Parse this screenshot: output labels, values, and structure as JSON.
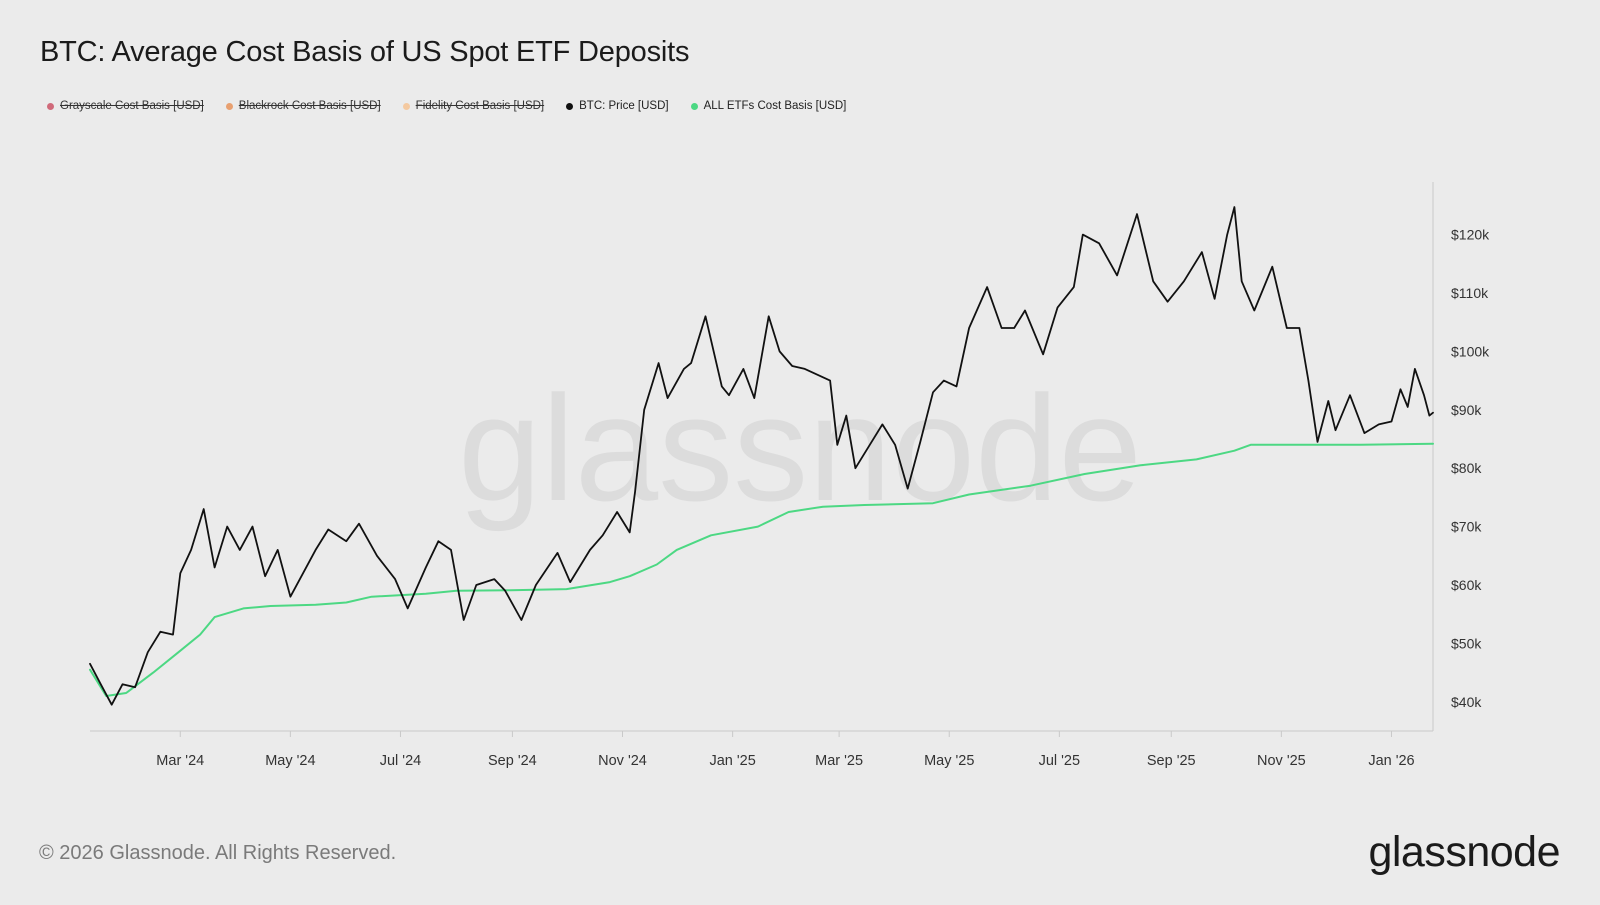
{
  "title": "BTC: Average Cost Basis of US Spot ETF Deposits",
  "legend": [
    {
      "label": "Grayscale Cost Basis [USD]",
      "color": "#d06a7a",
      "disabled": true
    },
    {
      "label": "Blackrock Cost Basis [USD]",
      "color": "#e8a070",
      "disabled": true
    },
    {
      "label": "Fidelity Cost Basis [USD]",
      "color": "#f4c9a0",
      "disabled": true
    },
    {
      "label": "BTC: Price [USD]",
      "color": "#111111",
      "disabled": false
    },
    {
      "label": "ALL ETFs Cost Basis [USD]",
      "color": "#4cd883",
      "disabled": false
    }
  ],
  "watermark": "glassnode",
  "footer": "© 2026 Glassnode. All Rights Reserved.",
  "brand": "glassnode",
  "chart_data": {
    "type": "line",
    "y_ticks": [
      40000,
      50000,
      60000,
      70000,
      80000,
      90000,
      100000,
      110000,
      120000
    ],
    "y_tick_labels": [
      "$40k",
      "$50k",
      "$60k",
      "$70k",
      "$80k",
      "$90k",
      "$100k",
      "$110k",
      "$120k"
    ],
    "ylim": [
      35000,
      129000
    ],
    "y_axis_position": "right",
    "x_ticks": [
      "2024-03-01",
      "2024-05-01",
      "2024-07-01",
      "2024-09-01",
      "2024-11-01",
      "2025-01-01",
      "2025-03-01",
      "2025-05-01",
      "2025-07-01",
      "2025-09-01",
      "2025-11-01",
      "2026-01-01"
    ],
    "x_tick_labels": [
      "Mar '24",
      "May '24",
      "Jul '24",
      "Sep '24",
      "Nov '24",
      "Jan '25",
      "Mar '25",
      "May '25",
      "Jul '25",
      "Sep '25",
      "Nov '25",
      "Jan '26"
    ],
    "xlim": [
      "2024-01-11",
      "2026-01-24"
    ],
    "grid": false,
    "series": [
      {
        "name": "BTC: Price [USD]",
        "color": "#111111",
        "points": [
          [
            "2024-01-11",
            46500
          ],
          [
            "2024-01-17",
            43000
          ],
          [
            "2024-01-23",
            39500
          ],
          [
            "2024-01-29",
            43000
          ],
          [
            "2024-02-05",
            42500
          ],
          [
            "2024-02-12",
            48500
          ],
          [
            "2024-02-19",
            52000
          ],
          [
            "2024-02-26",
            51500
          ],
          [
            "2024-03-01",
            62000
          ],
          [
            "2024-03-07",
            66000
          ],
          [
            "2024-03-14",
            73000
          ],
          [
            "2024-03-20",
            63000
          ],
          [
            "2024-03-27",
            70000
          ],
          [
            "2024-04-03",
            66000
          ],
          [
            "2024-04-10",
            70000
          ],
          [
            "2024-04-17",
            61500
          ],
          [
            "2024-04-24",
            66000
          ],
          [
            "2024-05-01",
            58000
          ],
          [
            "2024-05-08",
            62000
          ],
          [
            "2024-05-15",
            66000
          ],
          [
            "2024-05-22",
            69500
          ],
          [
            "2024-06-01",
            67500
          ],
          [
            "2024-06-08",
            70500
          ],
          [
            "2024-06-18",
            65000
          ],
          [
            "2024-06-28",
            61000
          ],
          [
            "2024-07-05",
            56000
          ],
          [
            "2024-07-15",
            63000
          ],
          [
            "2024-07-22",
            67500
          ],
          [
            "2024-07-29",
            66000
          ],
          [
            "2024-08-05",
            54000
          ],
          [
            "2024-08-12",
            60000
          ],
          [
            "2024-08-22",
            61000
          ],
          [
            "2024-08-28",
            59000
          ],
          [
            "2024-09-06",
            54000
          ],
          [
            "2024-09-14",
            60000
          ],
          [
            "2024-09-26",
            65500
          ],
          [
            "2024-10-03",
            60500
          ],
          [
            "2024-10-14",
            66000
          ],
          [
            "2024-10-21",
            68500
          ],
          [
            "2024-10-29",
            72500
          ],
          [
            "2024-11-05",
            69000
          ],
          [
            "2024-11-08",
            76000
          ],
          [
            "2024-11-13",
            90000
          ],
          [
            "2024-11-21",
            98000
          ],
          [
            "2024-11-26",
            92000
          ],
          [
            "2024-12-05",
            97000
          ],
          [
            "2024-12-09",
            98000
          ],
          [
            "2024-12-17",
            106000
          ],
          [
            "2024-12-26",
            94000
          ],
          [
            "2024-12-30",
            92500
          ],
          [
            "2025-01-07",
            97000
          ],
          [
            "2025-01-13",
            92000
          ],
          [
            "2025-01-21",
            106000
          ],
          [
            "2025-01-27",
            100000
          ],
          [
            "2025-02-03",
            97500
          ],
          [
            "2025-02-10",
            97000
          ],
          [
            "2025-02-24",
            95000
          ],
          [
            "2025-02-28",
            84000
          ],
          [
            "2025-03-05",
            89000
          ],
          [
            "2025-03-10",
            80000
          ],
          [
            "2025-03-18",
            84000
          ],
          [
            "2025-03-25",
            87500
          ],
          [
            "2025-04-01",
            84000
          ],
          [
            "2025-04-08",
            76500
          ],
          [
            "2025-04-15",
            84500
          ],
          [
            "2025-04-22",
            93000
          ],
          [
            "2025-04-28",
            95000
          ],
          [
            "2025-05-05",
            94000
          ],
          [
            "2025-05-12",
            104000
          ],
          [
            "2025-05-22",
            111000
          ],
          [
            "2025-05-30",
            104000
          ],
          [
            "2025-06-06",
            104000
          ],
          [
            "2025-06-12",
            107000
          ],
          [
            "2025-06-22",
            99500
          ],
          [
            "2025-06-30",
            107500
          ],
          [
            "2025-07-09",
            111000
          ],
          [
            "2025-07-14",
            120000
          ],
          [
            "2025-07-23",
            118500
          ],
          [
            "2025-08-02",
            113000
          ],
          [
            "2025-08-13",
            123500
          ],
          [
            "2025-08-22",
            112000
          ],
          [
            "2025-08-30",
            108500
          ],
          [
            "2025-09-08",
            112000
          ],
          [
            "2025-09-18",
            117000
          ],
          [
            "2025-09-25",
            109000
          ],
          [
            "2025-10-02",
            120000
          ],
          [
            "2025-10-06",
            124700
          ],
          [
            "2025-10-10",
            112000
          ],
          [
            "2025-10-17",
            107000
          ],
          [
            "2025-10-27",
            114500
          ],
          [
            "2025-11-04",
            104000
          ],
          [
            "2025-11-11",
            104000
          ],
          [
            "2025-11-16",
            95000
          ],
          [
            "2025-11-21",
            84500
          ],
          [
            "2025-11-27",
            91500
          ],
          [
            "2025-12-01",
            86500
          ],
          [
            "2025-12-09",
            92500
          ],
          [
            "2025-12-17",
            86000
          ],
          [
            "2025-12-25",
            87500
          ],
          [
            "2026-01-01",
            88000
          ],
          [
            "2026-01-06",
            93500
          ],
          [
            "2026-01-10",
            90500
          ],
          [
            "2026-01-14",
            97000
          ],
          [
            "2026-01-19",
            92500
          ],
          [
            "2026-01-22",
            89000
          ],
          [
            "2026-01-24",
            89500
          ]
        ]
      },
      {
        "name": "ALL ETFs Cost Basis [USD]",
        "color": "#4cd883",
        "points": [
          [
            "2024-01-11",
            45500
          ],
          [
            "2024-01-20",
            41000
          ],
          [
            "2024-01-31",
            41500
          ],
          [
            "2024-02-15",
            45000
          ],
          [
            "2024-02-29",
            48500
          ],
          [
            "2024-03-12",
            51500
          ],
          [
            "2024-03-20",
            54500
          ],
          [
            "2024-04-05",
            56000
          ],
          [
            "2024-04-20",
            56400
          ],
          [
            "2024-05-15",
            56600
          ],
          [
            "2024-06-01",
            57000
          ],
          [
            "2024-06-15",
            58000
          ],
          [
            "2024-07-15",
            58500
          ],
          [
            "2024-08-01",
            59000
          ],
          [
            "2024-08-31",
            59100
          ],
          [
            "2024-10-01",
            59300
          ],
          [
            "2024-10-25",
            60500
          ],
          [
            "2024-11-05",
            61500
          ],
          [
            "2024-11-20",
            63500
          ],
          [
            "2024-12-01",
            66000
          ],
          [
            "2024-12-20",
            68500
          ],
          [
            "2025-01-15",
            70000
          ],
          [
            "2025-02-01",
            72500
          ],
          [
            "2025-02-20",
            73400
          ],
          [
            "2025-03-15",
            73700
          ],
          [
            "2025-04-22",
            74000
          ],
          [
            "2025-05-12",
            75500
          ],
          [
            "2025-06-15",
            77000
          ],
          [
            "2025-07-15",
            79000
          ],
          [
            "2025-08-15",
            80500
          ],
          [
            "2025-09-15",
            81500
          ],
          [
            "2025-10-06",
            83000
          ],
          [
            "2025-10-15",
            84000
          ],
          [
            "2025-11-15",
            84000
          ],
          [
            "2025-12-15",
            84000
          ],
          [
            "2026-01-24",
            84200
          ]
        ]
      }
    ]
  }
}
